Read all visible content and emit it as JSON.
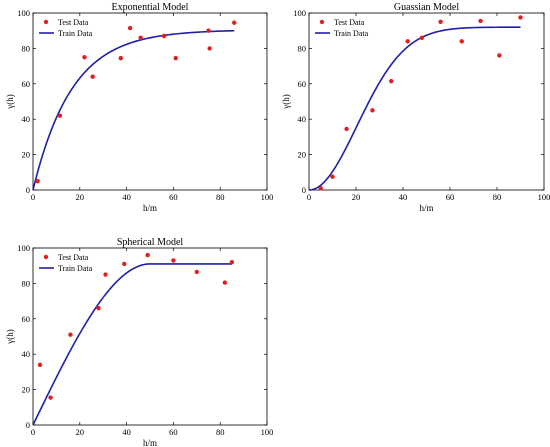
{
  "chart_data": [
    {
      "type": "scatter",
      "title": "Exponential Model",
      "xlabel": "h/m",
      "ylabel": "γ(h)",
      "xlim": [
        0,
        100
      ],
      "ylim": [
        0,
        100
      ],
      "xticks": [
        "0",
        "20",
        "40",
        "60",
        "80",
        "100"
      ],
      "yticks": [
        "0",
        "20",
        "40",
        "60",
        "80",
        "100"
      ],
      "legend_position": "top-left",
      "grid": false,
      "series": [
        {
          "name": "Test Data",
          "kind": "scatter",
          "color": "#e02020",
          "x": [
            2,
            11.5,
            22,
            25.5,
            37.5,
            41.5,
            46,
            56,
            61,
            75,
            75.5,
            86
          ],
          "y": [
            5,
            42,
            75,
            64,
            74.5,
            91.5,
            86,
            87,
            74.5,
            90,
            80,
            94.5
          ]
        },
        {
          "name": "Train Data",
          "kind": "line",
          "color": "#1f1fa8",
          "model": {
            "form": "exponential",
            "nugget": 0,
            "sill": 90.5,
            "range": 50,
            "xmax": 86
          }
        }
      ]
    },
    {
      "type": "scatter",
      "title": "Guassian Model",
      "xlabel": "h/m",
      "ylabel": "γ(h)",
      "xlim": [
        0,
        100
      ],
      "ylim": [
        0,
        100
      ],
      "xticks": [
        "0",
        "20",
        "40",
        "60",
        "80",
        "100"
      ],
      "yticks": [
        "0",
        "20",
        "40",
        "60",
        "80",
        "100"
      ],
      "legend_position": "top-left",
      "grid": false,
      "series": [
        {
          "name": "Test Data",
          "kind": "scatter",
          "color": "#e02020",
          "x": [
            5,
            10,
            16,
            27,
            35,
            42,
            48,
            56,
            65,
            73,
            81,
            90
          ],
          "y": [
            1,
            7.5,
            34.5,
            45,
            61.5,
            84,
            86,
            95,
            84,
            95.5,
            76,
            97.5
          ]
        },
        {
          "name": "Train Data",
          "kind": "line",
          "color": "#1f1fa8",
          "model": {
            "form": "gaussian",
            "nugget": 0,
            "sill": 92,
            "range": 50,
            "xmax": 90
          }
        }
      ]
    },
    {
      "type": "scatter",
      "title": "Spherical Model",
      "xlabel": "h/m",
      "ylabel": "γ(h)",
      "xlim": [
        0,
        100
      ],
      "ylim": [
        0,
        100
      ],
      "xticks": [
        "0",
        "20",
        "40",
        "60",
        "80",
        "100"
      ],
      "yticks": [
        "0",
        "20",
        "40",
        "60",
        "80",
        "100"
      ],
      "legend_position": "top-left",
      "grid": false,
      "series": [
        {
          "name": "Test Data",
          "kind": "scatter",
          "color": "#e02020",
          "x": [
            3,
            7.5,
            16,
            28,
            31,
            39,
            49,
            60,
            70,
            82,
            85
          ],
          "y": [
            34,
            15.5,
            51,
            66,
            85,
            91,
            96,
            93,
            86.5,
            80.5,
            92
          ]
        },
        {
          "name": "Train Data",
          "kind": "line",
          "color": "#1f1fa8",
          "model": {
            "form": "spherical",
            "nugget": 0,
            "sill": 91,
            "range": 50,
            "xmax": 85
          }
        }
      ]
    }
  ]
}
